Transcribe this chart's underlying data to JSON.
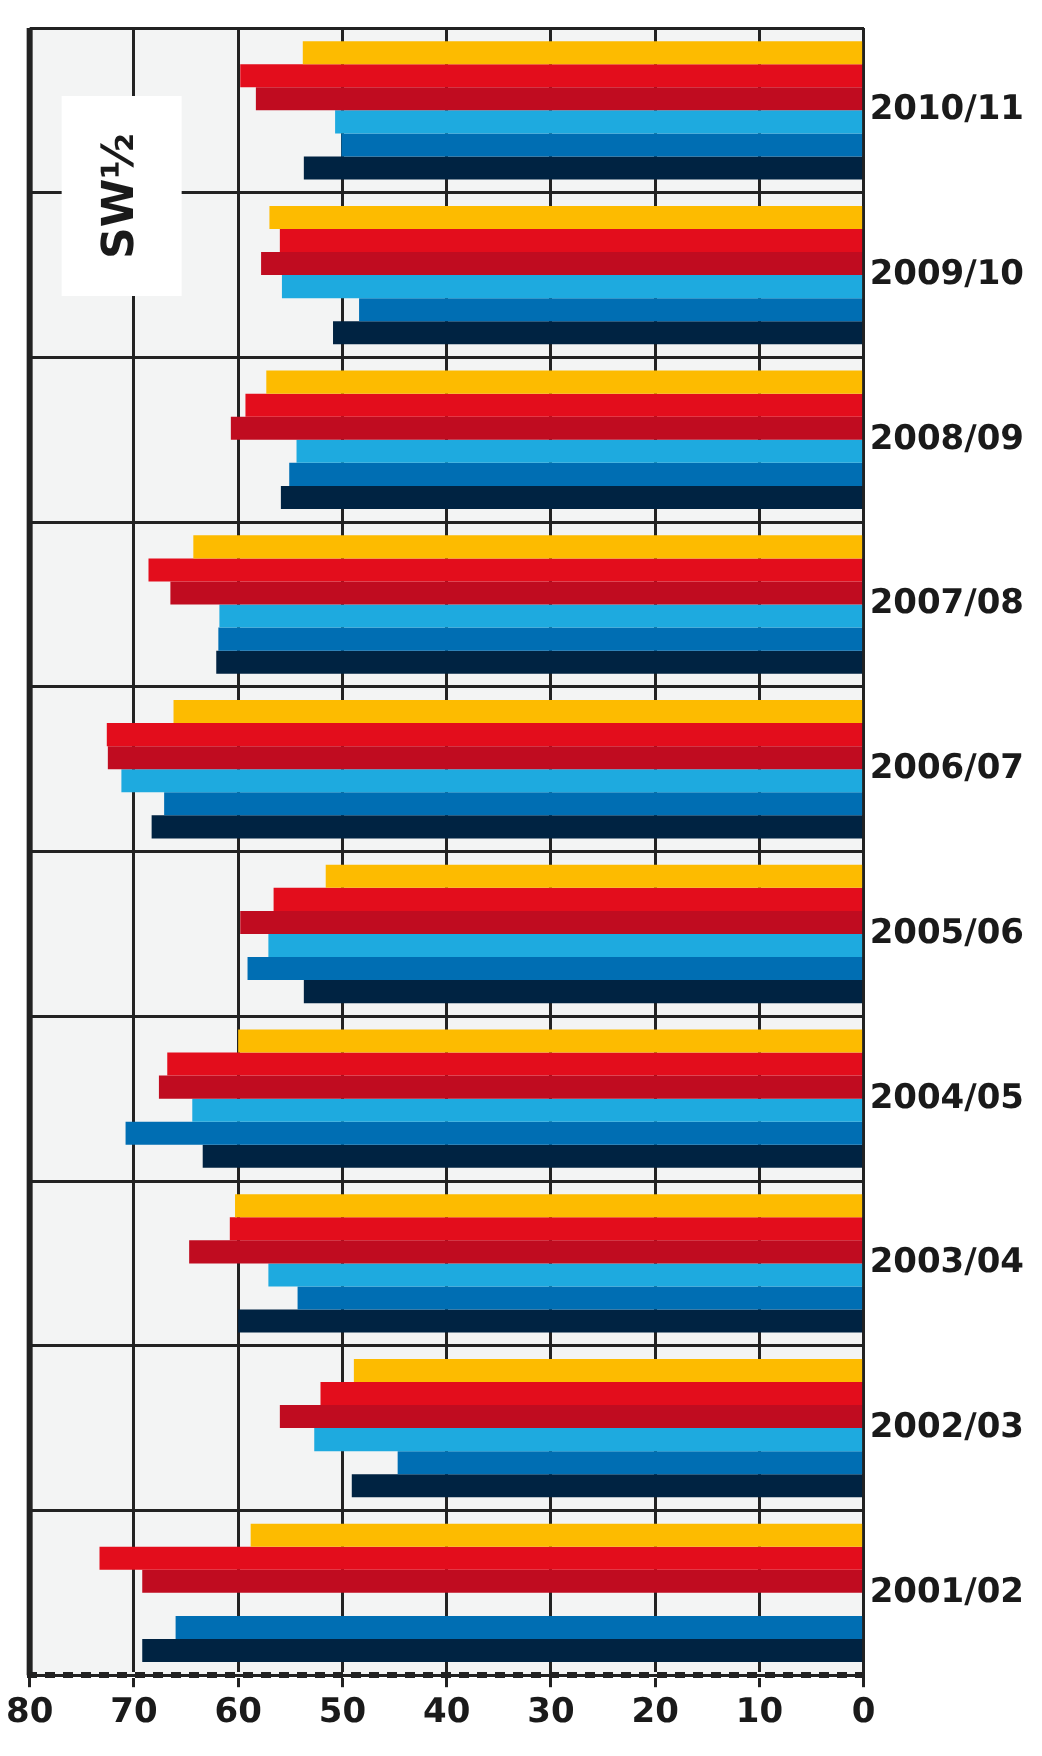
{
  "chart_data": {
    "type": "bar",
    "orientation": "horizontal",
    "categories": [
      "2010/11",
      "2009/10",
      "2008/09",
      "2007/08",
      "2006/07",
      "2005/06",
      "2004/05",
      "2003/04",
      "2002/03",
      "2001/02"
    ],
    "series": [
      {
        "color": "#fdbb00",
        "values": [
          53.8,
          57.0,
          57.3,
          64.3,
          66.2,
          51.6,
          60.0,
          60.3,
          48.9,
          58.8
        ]
      },
      {
        "color": "#e30d1c",
        "values": [
          59.8,
          56.0,
          59.3,
          68.6,
          72.6,
          56.6,
          66.8,
          60.8,
          52.1,
          73.3
        ]
      },
      {
        "color": "#c00c20",
        "values": [
          58.3,
          57.8,
          60.7,
          66.5,
          72.5,
          59.8,
          67.6,
          64.7,
          56.0,
          69.2
        ]
      },
      {
        "color": "#1eaadf",
        "values": [
          50.7,
          55.8,
          54.4,
          61.8,
          71.2,
          57.1,
          64.4,
          57.1,
          52.7,
          null
        ]
      },
      {
        "color": "#006eb3",
        "values": [
          50.1,
          48.4,
          55.1,
          61.9,
          67.1,
          59.1,
          70.8,
          54.3,
          44.7,
          66.0
        ]
      },
      {
        "color": "#002342",
        "values": [
          53.7,
          50.9,
          55.9,
          62.1,
          68.3,
          53.7,
          63.4,
          60.0,
          49.1,
          69.2
        ]
      }
    ],
    "xlim": [
      80,
      0
    ],
    "xticks": [
      80,
      70,
      60,
      50,
      40,
      30,
      20,
      10,
      0
    ],
    "grid": true,
    "legend": false,
    "annotations": [
      "SW½"
    ]
  }
}
